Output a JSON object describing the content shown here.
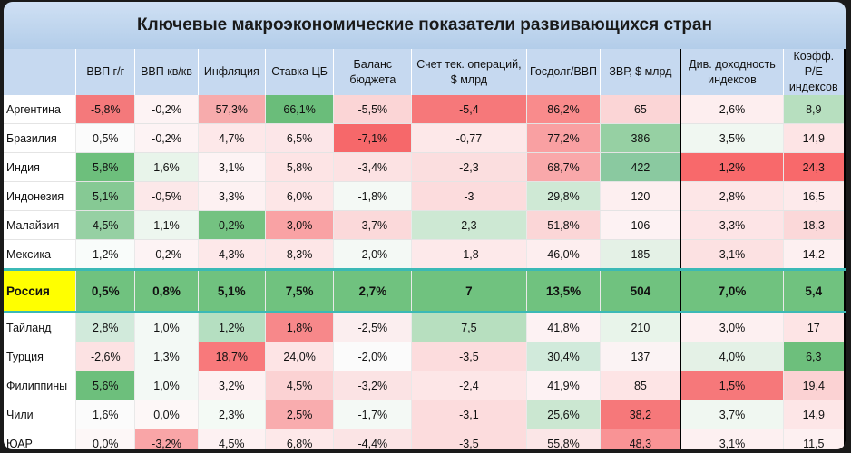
{
  "title": "Ключевые макроэкономические показатели развивающихся стран",
  "highlight_row": "Россия",
  "headers": [
    "",
    "ВВП г/г",
    "ВВП кв/кв",
    "Инфляция",
    "Ставка ЦБ",
    "Баланс бюджета",
    "Счет тек. операций, $ млрд",
    "Госдолг/ВВП",
    "ЗВР, $ млрд",
    "Див. доходность индексов",
    "Коэфф. P/E индексов"
  ],
  "rows": [
    [
      "Аргентина",
      "-5,8%",
      "-0,2%",
      "57,3%",
      "66,1%",
      "-5,5%",
      "-5,4",
      "86,2%",
      "65",
      "2,6%",
      "8,9"
    ],
    [
      "Бразилия",
      "0,5%",
      "-0,2%",
      "4,7%",
      "6,5%",
      "-7,1%",
      "-0,77",
      "77,2%",
      "386",
      "3,5%",
      "14,9"
    ],
    [
      "Индия",
      "5,8%",
      "1,6%",
      "3,1%",
      "5,8%",
      "-3,4%",
      "-2,3",
      "68,7%",
      "422",
      "1,2%",
      "24,3"
    ],
    [
      "Индонезия",
      "5,1%",
      "-0,5%",
      "3,3%",
      "6,0%",
      "-1,8%",
      "-3",
      "29,8%",
      "120",
      "2,8%",
      "16,5"
    ],
    [
      "Малайзия",
      "4,5%",
      "1,1%",
      "0,2%",
      "3,0%",
      "-3,7%",
      "2,3",
      "51,8%",
      "106",
      "3,3%",
      "18,3"
    ],
    [
      "Мексика",
      "1,2%",
      "-0,2%",
      "4,3%",
      "8,3%",
      "-2,0%",
      "-1,8",
      "46,0%",
      "185",
      "3,1%",
      "14,2"
    ],
    [
      "Россия",
      "0,5%",
      "0,8%",
      "5,1%",
      "7,5%",
      "2,7%",
      "7",
      "13,5%",
      "504",
      "7,0%",
      "5,4"
    ],
    [
      "Тайланд",
      "2,8%",
      "1,0%",
      "1,2%",
      "1,8%",
      "-2,5%",
      "7,5",
      "41,8%",
      "210",
      "3,0%",
      "17"
    ],
    [
      "Турция",
      "-2,6%",
      "1,3%",
      "18,7%",
      "24,0%",
      "-2,0%",
      "-3,5",
      "30,4%",
      "137",
      "4,0%",
      "6,3"
    ],
    [
      "Филиппины",
      "5,6%",
      "1,0%",
      "3,2%",
      "4,5%",
      "-3,2%",
      "-2,4",
      "41,9%",
      "85",
      "1,5%",
      "19,4"
    ],
    [
      "Чили",
      "1,6%",
      "0,0%",
      "2,3%",
      "2,5%",
      "-1,7%",
      "-3,1",
      "25,6%",
      "38,2",
      "3,7%",
      "14,9"
    ],
    [
      "ЮАР",
      "0,0%",
      "-3,2%",
      "4,5%",
      "6,8%",
      "-4,4%",
      "-3,5",
      "55,8%",
      "48,3",
      "3,1%",
      "11,5"
    ]
  ],
  "colors": [
    [
      "#ffffff",
      "#f4797b",
      "#fdf3f4",
      "#f7abac",
      "#6abd7a",
      "#fbd5d6",
      "#f6787a",
      "#f98b8c",
      "#fbd5d6",
      "#fdeeef",
      "#b7dfbf"
    ],
    [
      "#ffffff",
      "#fbfbfb",
      "#fdf3f4",
      "#fde8e9",
      "#fce6e8",
      "#f6686a",
      "#fde8e9",
      "#f9a0a2",
      "#96d0a3",
      "#f0f7f1",
      "#fde4e5"
    ],
    [
      "#ffffff",
      "#6dbf7c",
      "#e8f4ea",
      "#fdf3f4",
      "#fde4e5",
      "#fce2e3",
      "#fbdedf",
      "#f9a8aa",
      "#8ac9a0",
      "#f8696b",
      "#f8696b"
    ],
    [
      "#ffffff",
      "#86c994",
      "#fce8e9",
      "#fdf1f2",
      "#fde6e7",
      "#f4f9f5",
      "#fcdcdd",
      "#cfe9d5",
      "#fdeff0",
      "#fde6e7",
      "#fdeaeb"
    ],
    [
      "#ffffff",
      "#96d0a3",
      "#edf6ef",
      "#74c281",
      "#f9a2a4",
      "#fbd9da",
      "#cde8d3",
      "#fbd6d7",
      "#fdf2f3",
      "#fde4e6",
      "#fbd8d9"
    ],
    [
      "#ffffff",
      "#f9fcfa",
      "#fdf3f4",
      "#fde8e9",
      "#fde6e7",
      "#f4f9f5",
      "#fde9ea",
      "#fdeeef",
      "#e4f1e6",
      "#fce1e2",
      "#fdf0f1"
    ],
    [
      "#ffff00",
      "#70c27f",
      "#70c27f",
      "#70c27f",
      "#70c27f",
      "#70c27f",
      "#70c27f",
      "#70c27f",
      "#70c27f",
      "#70c27f",
      "#70c27f"
    ],
    [
      "#ffffff",
      "#d1eadb",
      "#f3f9f5",
      "#b5dfc1",
      "#f7888a",
      "#fbeeef",
      "#b7dfbf",
      "#fdf2f3",
      "#e8f4ea",
      "#fdf0f1",
      "#fde4e5"
    ],
    [
      "#ffffff",
      "#fce2e3",
      "#f3f9f5",
      "#f8797b",
      "#fde4e5",
      "#fbfbfb",
      "#fcdcdd",
      "#d1eadb",
      "#fbf3f4",
      "#e4f1e6",
      "#6dbf7c"
    ],
    [
      "#ffffff",
      "#6dbf7c",
      "#f3f9f5",
      "#fdf1f2",
      "#fbd2d3",
      "#fbe3e4",
      "#fde6e7",
      "#fdf2f3",
      "#fde4e5",
      "#f6787a",
      "#fbd2d3"
    ],
    [
      "#ffffff",
      "#fbfbfb",
      "#fdf7f7",
      "#f4faf5",
      "#f9acae",
      "#f4f9f5",
      "#fcdcdd",
      "#cbe7d1",
      "#f6787a",
      "#f0f7f1",
      "#fde6e7"
    ],
    [
      "#ffffff",
      "#fdf7f7",
      "#f9a5a7",
      "#fdf1f2",
      "#fde8e9",
      "#fbe4e5",
      "#fcdcdd",
      "#fbe6e7",
      "#f99395",
      "#fdf0f1",
      "#fdf0f1"
    ]
  ]
}
